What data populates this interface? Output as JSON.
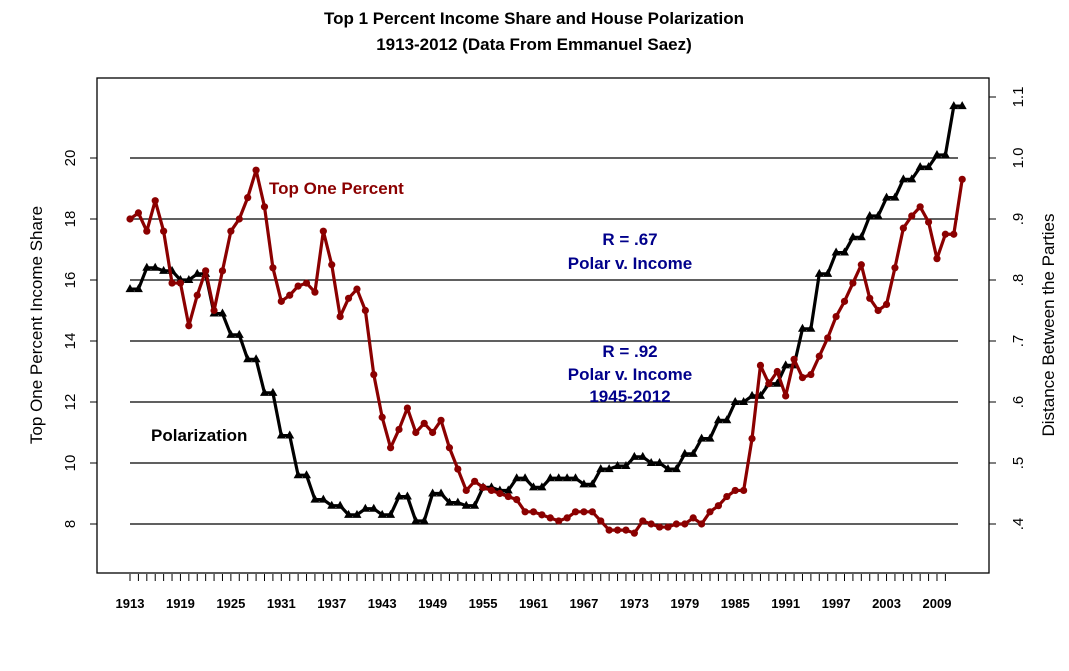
{
  "chart_data": {
    "type": "line",
    "title": "Top 1 Percent Income Share and House Polarization",
    "subtitle": "1913-2012 (Data From Emmanuel Saez)",
    "xlabel": "",
    "ylabel": "Top One Percent Income Share",
    "ylabel_right": "Distance Between the Parties",
    "xlim": [
      1913,
      2012
    ],
    "ylim": [
      6.5,
      22.5
    ],
    "ylim_right": [
      0.325,
      1.125
    ],
    "grid": "horizontal",
    "x_tick_labels": [
      "1913",
      "1919",
      "1925",
      "1931",
      "1937",
      "1943",
      "1949",
      "1955",
      "1961",
      "1967",
      "1973",
      "1979",
      "1985",
      "1991",
      "1997",
      "2003",
      "2009"
    ],
    "y_ticks": [
      8,
      10,
      12,
      14,
      16,
      18,
      20
    ],
    "y_tick_labels": [
      "8",
      "10",
      "12",
      "14",
      "16",
      "18",
      "20"
    ],
    "y_right_ticks": [
      0.4,
      0.5,
      0.6,
      0.7,
      0.8,
      0.9,
      1.0,
      1.1
    ],
    "y_right_tick_labels": [
      ".4",
      ".5",
      ".6",
      ".7",
      ".8",
      ".9",
      "1.0",
      "1.1"
    ],
    "x": [
      1913,
      1914,
      1915,
      1916,
      1917,
      1918,
      1919,
      1920,
      1921,
      1922,
      1923,
      1924,
      1925,
      1926,
      1927,
      1928,
      1929,
      1930,
      1931,
      1932,
      1933,
      1934,
      1935,
      1936,
      1937,
      1938,
      1939,
      1940,
      1941,
      1942,
      1943,
      1944,
      1945,
      1946,
      1947,
      1948,
      1949,
      1950,
      1951,
      1952,
      1953,
      1954,
      1955,
      1956,
      1957,
      1958,
      1959,
      1960,
      1961,
      1962,
      1963,
      1964,
      1965,
      1966,
      1967,
      1968,
      1969,
      1970,
      1971,
      1972,
      1973,
      1974,
      1975,
      1976,
      1977,
      1978,
      1979,
      1980,
      1981,
      1982,
      1983,
      1984,
      1985,
      1986,
      1987,
      1988,
      1989,
      1990,
      1991,
      1992,
      1993,
      1994,
      1995,
      1996,
      1997,
      1998,
      1999,
      2000,
      2001,
      2002,
      2003,
      2004,
      2005,
      2006,
      2007,
      2008,
      2009,
      2010,
      2011,
      2012
    ],
    "series": [
      {
        "name": "Top One Percent",
        "axis": "left",
        "color": "#8b0000",
        "marker": "circle",
        "values": [
          18.0,
          18.2,
          17.6,
          18.6,
          17.6,
          15.9,
          15.9,
          14.5,
          15.5,
          16.3,
          15.0,
          16.3,
          17.6,
          18.0,
          18.7,
          19.6,
          18.4,
          16.4,
          15.3,
          15.5,
          15.8,
          15.9,
          15.6,
          17.6,
          16.5,
          14.8,
          15.4,
          15.7,
          15.0,
          12.9,
          11.5,
          10.5,
          11.1,
          11.8,
          11.0,
          11.3,
          11.0,
          11.4,
          10.5,
          9.8,
          9.1,
          9.4,
          9.2,
          9.1,
          9.0,
          8.9,
          8.8,
          8.4,
          8.4,
          8.3,
          8.2,
          8.1,
          8.2,
          8.4,
          8.4,
          8.4,
          8.1,
          7.8,
          7.8,
          7.8,
          7.7,
          8.1,
          8.0,
          7.9,
          7.9,
          8.0,
          8.0,
          8.2,
          8.0,
          8.4,
          8.6,
          8.9,
          9.1,
          9.1,
          10.8,
          13.2,
          12.6,
          13.0,
          12.2,
          13.4,
          12.8,
          12.9,
          13.5,
          14.1,
          14.8,
          15.3,
          15.9,
          16.5,
          15.4,
          15.0,
          15.2,
          16.4,
          17.7,
          18.1,
          18.4,
          17.9,
          16.7,
          17.5,
          17.5,
          19.3
        ]
      },
      {
        "name": "Polarization",
        "axis": "right",
        "color": "#000000",
        "marker": "triangle",
        "values": [
          0.785,
          0.785,
          0.82,
          0.82,
          0.815,
          0.815,
          0.8,
          0.8,
          0.81,
          0.81,
          0.745,
          0.745,
          0.71,
          0.71,
          0.67,
          0.67,
          0.615,
          0.615,
          0.545,
          0.545,
          0.48,
          0.48,
          0.44,
          0.44,
          0.43,
          0.43,
          0.415,
          0.415,
          0.425,
          0.425,
          0.415,
          0.415,
          0.445,
          0.445,
          0.405,
          0.405,
          0.45,
          0.45,
          0.435,
          0.435,
          0.43,
          0.43,
          0.46,
          0.46,
          0.455,
          0.455,
          0.475,
          0.475,
          0.46,
          0.46,
          0.475,
          0.475,
          0.475,
          0.475,
          0.465,
          0.465,
          0.49,
          0.49,
          0.495,
          0.495,
          0.51,
          0.51,
          0.5,
          0.5,
          0.49,
          0.49,
          0.515,
          0.515,
          0.54,
          0.54,
          0.57,
          0.57,
          0.6,
          0.6,
          0.61,
          0.61,
          0.63,
          0.63,
          0.66,
          0.66,
          0.72,
          0.72,
          0.81,
          0.81,
          0.845,
          0.845,
          0.87,
          0.87,
          0.905,
          0.905,
          0.935,
          0.935,
          0.965,
          0.965,
          0.985,
          0.985,
          1.005,
          1.005,
          1.085,
          1.085
        ]
      }
    ],
    "annotations": [
      {
        "text": "Top One Percent",
        "color": "#8b0000"
      },
      {
        "text": "Polarization",
        "color": "#000000"
      },
      {
        "text": "R = .67",
        "color": "#00008b"
      },
      {
        "text": "Polar v. Income",
        "color": "#00008b"
      },
      {
        "text": "R = .92",
        "color": "#00008b"
      },
      {
        "text": "Polar v. Income",
        "color": "#00008b"
      },
      {
        "text": "1945-2012",
        "color": "#00008b"
      }
    ]
  }
}
